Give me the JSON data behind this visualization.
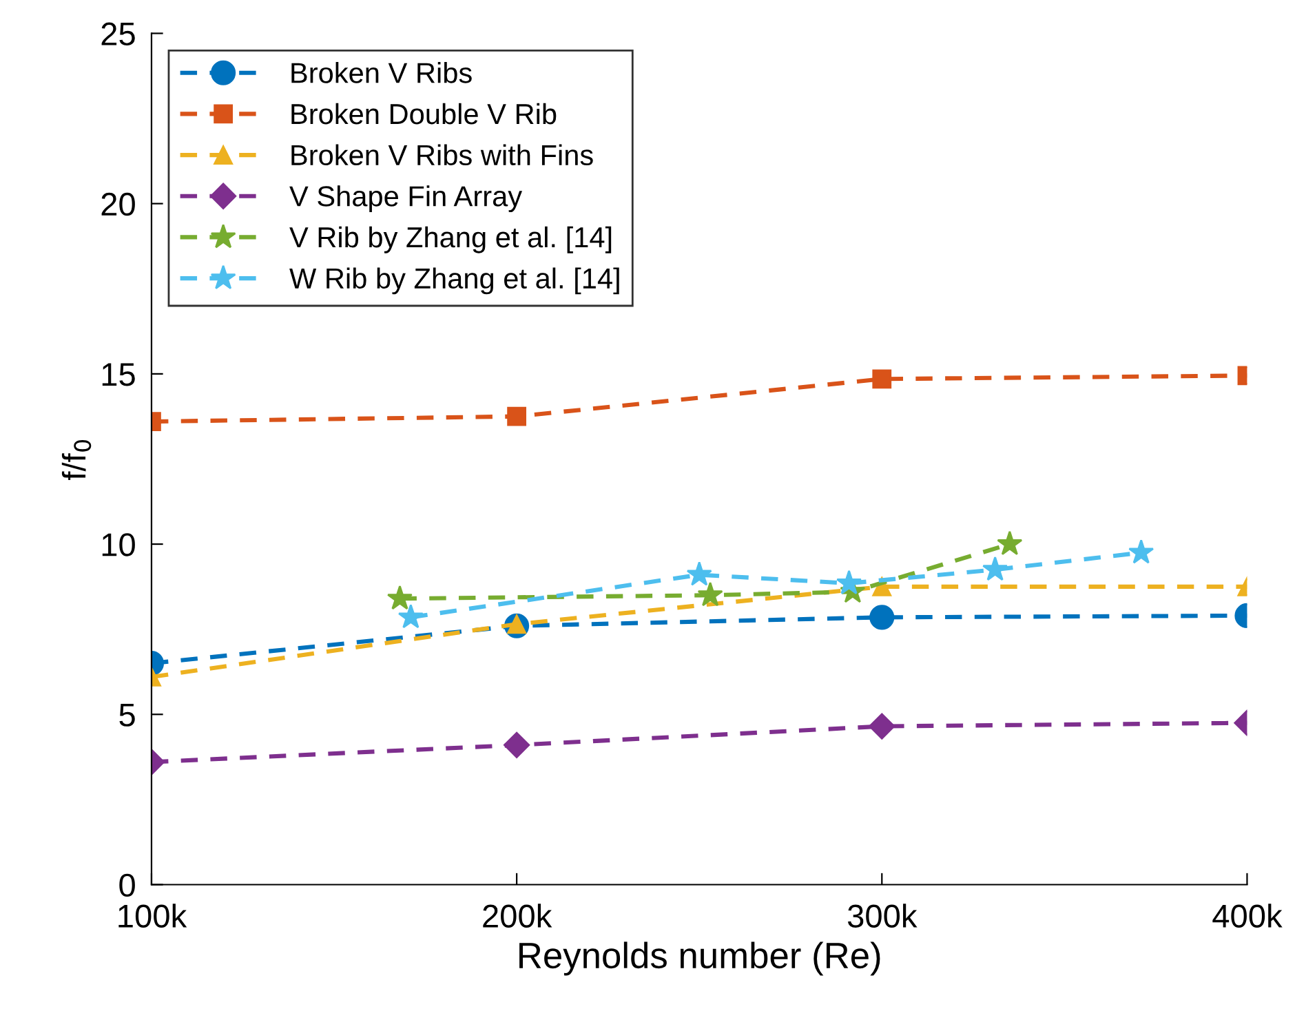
{
  "chart_data": {
    "type": "line",
    "xlabel": "Reynolds number (Re)",
    "ylabel": "f/f$_{0}$",
    "xlim": [
      100000,
      400000
    ],
    "xticks": [
      {
        "value": 100000,
        "label": "100k"
      },
      {
        "value": 200000,
        "label": "200k"
      },
      {
        "value": 300000,
        "label": "300k"
      },
      {
        "value": 400000,
        "label": "400k"
      }
    ],
    "ylim": [
      0,
      25
    ],
    "yticks": [
      0,
      5,
      10,
      15,
      20,
      25
    ],
    "grid": false,
    "legend": "top left",
    "line_style": "dashed",
    "series": [
      {
        "name": "Broken V Ribs",
        "color": "#0072bd",
        "marker": "circle",
        "x": [
          100000,
          200000,
          300000,
          400000
        ],
        "values": [
          6.5,
          7.6,
          7.85,
          7.9
        ]
      },
      {
        "name": "Broken Double V Rib",
        "color": "#d95319",
        "marker": "square",
        "x": [
          100000,
          200000,
          300000,
          400000
        ],
        "values": [
          13.6,
          13.75,
          14.85,
          14.95
        ]
      },
      {
        "name": "Broken V Ribs with Fins",
        "color": "#edb120",
        "marker": "triangle",
        "x": [
          100000,
          200000,
          300000,
          400000
        ],
        "values": [
          6.1,
          7.65,
          8.75,
          8.75
        ]
      },
      {
        "name": "V Shape Fin Array",
        "color": "#7e2f8e",
        "marker": "diamond",
        "x": [
          100000,
          200000,
          300000,
          400000
        ],
        "values": [
          3.6,
          4.1,
          4.65,
          4.75
        ]
      },
      {
        "name": "V Rib by Zhang et al. [14]",
        "color": "#77ac30",
        "marker": "star",
        "x": [
          168000,
          253000,
          292000,
          335000
        ],
        "values": [
          8.4,
          8.5,
          8.6,
          10.0
        ]
      },
      {
        "name": "W Rib by Zhang et al. [14]",
        "color": "#4dbeee",
        "marker": "star",
        "x": [
          171000,
          250000,
          291000,
          331000,
          371000
        ],
        "values": [
          7.85,
          9.1,
          8.85,
          9.25,
          9.75
        ]
      }
    ]
  }
}
